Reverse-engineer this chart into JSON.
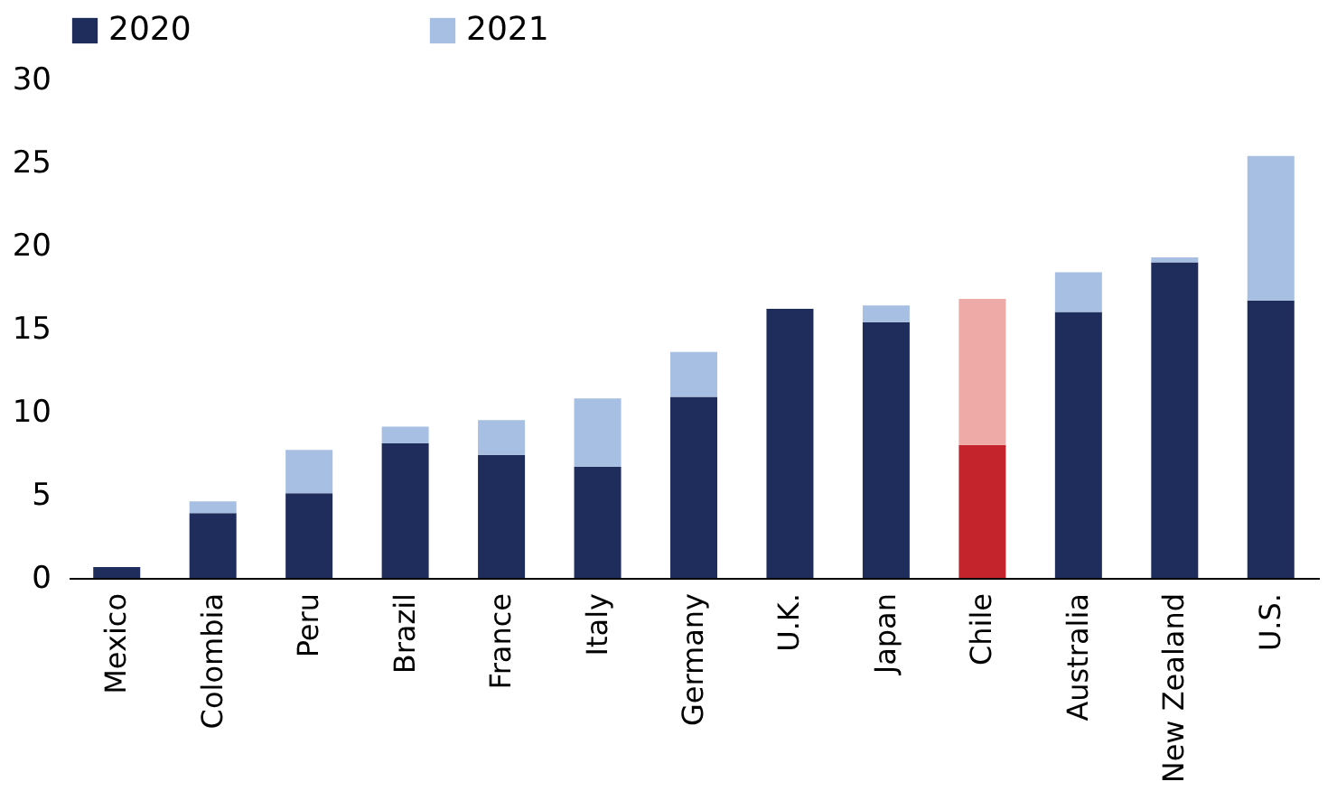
{
  "chart_data": {
    "type": "bar",
    "stacked": true,
    "categories": [
      "Mexico",
      "Colombia",
      "Peru",
      "Brazil",
      "France",
      "Italy",
      "Germany",
      "U.K.",
      "Japan",
      "Chile",
      "Australia",
      "New Zealand",
      "U.S."
    ],
    "series": [
      {
        "name": "2020",
        "color": "#1f2d5c",
        "colors": [
          "#1f2d5c",
          "#1f2d5c",
          "#1f2d5c",
          "#1f2d5c",
          "#1f2d5c",
          "#1f2d5c",
          "#1f2d5c",
          "#1f2d5c",
          "#1f2d5c",
          "#c4242b",
          "#1f2d5c",
          "#1f2d5c",
          "#1f2d5c"
        ],
        "values": [
          0.65,
          3.9,
          5.1,
          8.1,
          7.4,
          6.7,
          10.9,
          16.2,
          15.4,
          8.0,
          16.0,
          19.0,
          16.7
        ]
      },
      {
        "name": "2021",
        "color": "#a6bfe2",
        "colors": [
          "#a6bfe2",
          "#a6bfe2",
          "#a6bfe2",
          "#a6bfe2",
          "#a6bfe2",
          "#a6bfe2",
          "#a6bfe2",
          "#a6bfe2",
          "#a6bfe2",
          "#eeaaa6",
          "#a6bfe2",
          "#a6bfe2",
          "#a6bfe2"
        ],
        "values": [
          0,
          0.7,
          2.6,
          1.0,
          2.1,
          4.1,
          2.7,
          0,
          1.0,
          8.8,
          2.4,
          0.3,
          8.7
        ]
      }
    ],
    "ylim": [
      0,
      30
    ],
    "yticks": [
      0,
      5,
      10,
      15,
      20,
      25,
      30
    ],
    "grid": false,
    "legend": "top"
  }
}
